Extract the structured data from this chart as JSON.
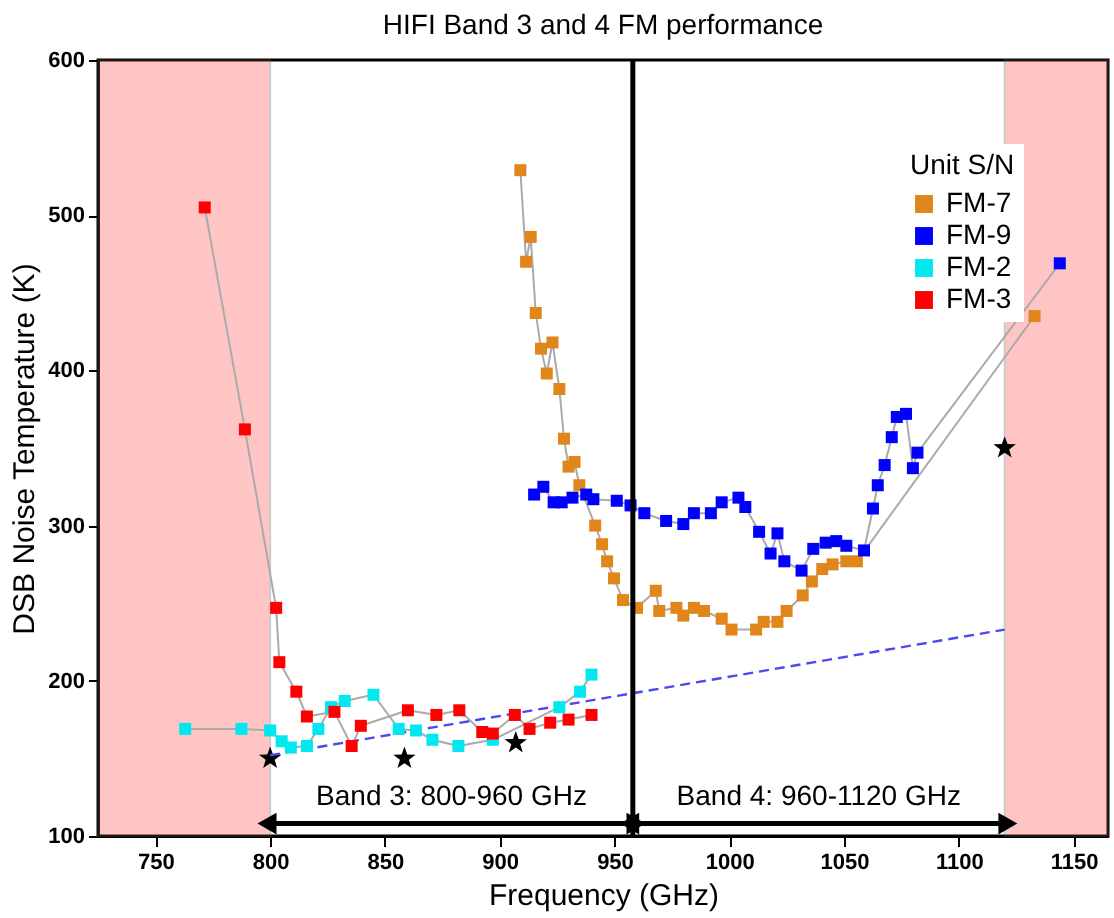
{
  "chart_data": {
    "type": "line",
    "title": "HIFI Band 3 and 4 FM performance",
    "xlabel": "Frequency (GHz)",
    "ylabel": "DSB Noise Temperature (K)",
    "legend_title": "Unit S/N",
    "legend": "top right",
    "marker": "square",
    "grid": false,
    "xlim": [
      725,
      1165
    ],
    "xticks": [
      750,
      800,
      850,
      900,
      950,
      1000,
      1050,
      1100,
      1150
    ],
    "ylim": [
      100,
      600
    ],
    "yticks": [
      100,
      200,
      300,
      400,
      500,
      600
    ],
    "series": [
      {
        "name": "FM-7",
        "color": "#e0861a",
        "x": [
          909,
          911.5,
          913.5,
          915.7,
          918,
          920.5,
          923,
          926,
          928,
          930,
          932.6,
          934.7,
          941.6,
          944.6,
          946.8,
          949.8,
          953.7,
          959.8,
          968,
          969.5,
          977,
          980,
          984.6,
          989,
          996.7,
          1001,
          1011.7,
          1015,
          1021,
          1025,
          1032,
          1036,
          1040.5,
          1045,
          1051,
          1055.6,
          1133
        ],
        "values": [
          529,
          470,
          486,
          437,
          414,
          398,
          418,
          388,
          356,
          338,
          341,
          326,
          300,
          288,
          277,
          266,
          252,
          247,
          258,
          245,
          247,
          242,
          247,
          245,
          240,
          233,
          233,
          238,
          238,
          245,
          255,
          264,
          272,
          275,
          277,
          277,
          435
        ]
      },
      {
        "name": "FM-9",
        "color": "#0000ff",
        "x": [
          915,
          919,
          923.5,
          927,
          931.7,
          937.7,
          940.8,
          951,
          957,
          963,
          972.5,
          980,
          984.6,
          992,
          996.7,
          1004,
          1007,
          1013,
          1018,
          1021,
          1024,
          1031.5,
          1036.6,
          1042,
          1046.6,
          1051,
          1058.7,
          1062.6,
          1064.7,
          1067.7,
          1070.8,
          1073,
          1077,
          1080,
          1082,
          1144
        ],
        "values": [
          320,
          325,
          315,
          315,
          318,
          320,
          317,
          316,
          313,
          308,
          303,
          301,
          308,
          308,
          315,
          318,
          312,
          296,
          282,
          295,
          277,
          271,
          285,
          289,
          290,
          287,
          284,
          311,
          326,
          339,
          357,
          370,
          372,
          337,
          347,
          469
        ]
      },
      {
        "name": "FM-2",
        "color": "#00e8f0",
        "x": [
          763,
          787.5,
          800,
          805,
          809,
          816,
          821,
          826.5,
          832.5,
          845,
          856,
          863.5,
          870.7,
          882,
          897,
          926,
          935,
          940
        ],
        "values": [
          169,
          169,
          168,
          161,
          157,
          158,
          169,
          183,
          187,
          191,
          169,
          168,
          162,
          158,
          162,
          183,
          193,
          204
        ]
      },
      {
        "name": "FM-3",
        "color": "#ff0000",
        "x": [
          771.5,
          789,
          802.6,
          804,
          811.4,
          816,
          828,
          835.5,
          839.5,
          860,
          872.4,
          882.4,
          892.4,
          897,
          906.6,
          913,
          922,
          930,
          940
        ],
        "values": [
          505,
          362,
          247,
          212,
          193,
          177,
          180,
          158,
          171,
          181,
          178,
          181,
          167,
          166,
          178,
          169,
          173,
          175,
          178
        ]
      },
      {
        "type": "scatter",
        "marker": "star",
        "color": "#000000",
        "x": [
          800,
          858.5,
          907,
          1120
        ],
        "values": [
          150,
          150,
          160,
          350
        ]
      },
      {
        "type": "line",
        "marker": "none",
        "line_style": "dashed",
        "color": "#4a4aee",
        "x": [
          800,
          1120
        ],
        "values": [
          152,
          233
        ]
      }
    ],
    "ref_lines": [
      {
        "axis": "x",
        "value": 958,
        "color": "#000000"
      }
    ],
    "bands": [
      {
        "axis": "x",
        "from": 725,
        "to": 800,
        "color": "#ff4040"
      },
      {
        "axis": "x",
        "from": 1120,
        "to": 1165,
        "color": "#ff4040"
      }
    ],
    "annotations": [
      "Band 3: 800-960 GHz",
      "Band 4: 960-1120 GHz"
    ]
  }
}
